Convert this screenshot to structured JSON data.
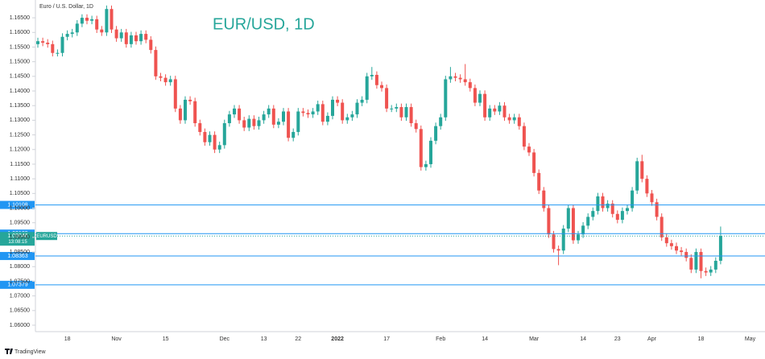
{
  "chart_data": {
    "type": "candlestick",
    "header": "Euro / U.S. Dollar, 1D",
    "title": "EUR/USD, 1D",
    "symbol": "EURUSD",
    "brand": "TradingView",
    "up_color": "#26a69a",
    "down_color": "#ef5350",
    "level_color": "#2196f3",
    "ylim": [
      1.0578,
      1.1697
    ],
    "yticks": [
      {
        "value": 1.06,
        "label": "1.06000"
      },
      {
        "value": 1.065,
        "label": "1.06500"
      },
      {
        "value": 1.07,
        "label": "1.07000"
      },
      {
        "value": 1.075,
        "label": "1.07500"
      },
      {
        "value": 1.08,
        "label": "1.08000"
      },
      {
        "value": 1.085,
        "label": "1.08500"
      },
      {
        "value": 1.09,
        "label": "1.09000"
      },
      {
        "value": 1.095,
        "label": "1.09500"
      },
      {
        "value": 1.1,
        "label": "1.10000"
      },
      {
        "value": 1.105,
        "label": "1.10500"
      },
      {
        "value": 1.11,
        "label": "1.11000"
      },
      {
        "value": 1.115,
        "label": "1.11500"
      },
      {
        "value": 1.12,
        "label": "1.12000"
      },
      {
        "value": 1.125,
        "label": "1.12500"
      },
      {
        "value": 1.13,
        "label": "1.13000"
      },
      {
        "value": 1.135,
        "label": "1.13500"
      },
      {
        "value": 1.14,
        "label": "1.14000"
      },
      {
        "value": 1.145,
        "label": "1.14500"
      },
      {
        "value": 1.15,
        "label": "1.15000"
      },
      {
        "value": 1.155,
        "label": "1.15500"
      },
      {
        "value": 1.16,
        "label": "1.16000"
      },
      {
        "value": 1.165,
        "label": "1.16500"
      }
    ],
    "levels": [
      1.10108,
      1.09129,
      1.08363,
      1.07379
    ],
    "current_price": 1.09046,
    "countdown": "13:08:15",
    "categories": [
      null,
      null,
      null,
      null,
      null,
      null,
      "18",
      null,
      null,
      null,
      null,
      null,
      null,
      null,
      null,
      null,
      "Nov",
      null,
      null,
      null,
      null,
      null,
      null,
      null,
      null,
      null,
      "15",
      null,
      null,
      null,
      null,
      null,
      null,
      null,
      null,
      null,
      null,
      null,
      "Dec",
      null,
      null,
      null,
      null,
      null,
      null,
      null,
      "13",
      null,
      null,
      null,
      null,
      null,
      null,
      "22",
      null,
      null,
      null,
      null,
      null,
      null,
      null,
      "2022",
      null,
      null,
      null,
      null,
      null,
      null,
      null,
      null,
      null,
      "17",
      null,
      null,
      null,
      null,
      null,
      null,
      null,
      null,
      null,
      null,
      "Feb",
      null,
      null,
      null,
      null,
      null,
      null,
      null,
      null,
      "14",
      null,
      null,
      null,
      null,
      null,
      null,
      null,
      null,
      null,
      "Mar",
      null,
      null,
      null,
      null,
      null,
      null,
      null,
      null,
      null,
      "14",
      null,
      null,
      null,
      null,
      null,
      null,
      "23",
      null,
      null,
      null,
      null,
      null,
      null,
      "Apr",
      null,
      null,
      null,
      null,
      null,
      null,
      null,
      null,
      null,
      "18",
      null,
      null,
      null,
      null,
      null,
      null,
      null,
      null,
      null,
      "May"
    ],
    "ohlc": [
      [
        1.156,
        1.1582,
        1.1548,
        1.157
      ],
      [
        1.157,
        1.1582,
        1.1553,
        1.1565
      ],
      [
        1.1565,
        1.1577,
        1.1548,
        1.156
      ],
      [
        1.156,
        1.1572,
        1.1518,
        1.153
      ],
      [
        1.153,
        1.1542,
        1.1518,
        1.153
      ],
      [
        1.153,
        1.1597,
        1.1518,
        1.1585
      ],
      [
        1.1585,
        1.1607,
        1.1573,
        1.1595
      ],
      [
        1.1595,
        1.1612,
        1.1583,
        1.16
      ],
      [
        1.16,
        1.1642,
        1.1588,
        1.163
      ],
      [
        1.163,
        1.1662,
        1.1618,
        1.165
      ],
      [
        1.165,
        1.1662,
        1.1628,
        1.164
      ],
      [
        1.164,
        1.1657,
        1.1628,
        1.1645
      ],
      [
        1.1645,
        1.1657,
        1.1598,
        1.161
      ],
      [
        1.161,
        1.1622,
        1.1588,
        1.16
      ],
      [
        1.16,
        1.1692,
        1.1588,
        1.168
      ],
      [
        1.168,
        1.1692,
        1.1598,
        1.161
      ],
      [
        1.161,
        1.1622,
        1.1568,
        1.158
      ],
      [
        1.158,
        1.1612,
        1.1568,
        1.16
      ],
      [
        1.16,
        1.1612,
        1.1548,
        1.156
      ],
      [
        1.156,
        1.1602,
        1.1548,
        1.159
      ],
      [
        1.159,
        1.1602,
        1.1558,
        1.157
      ],
      [
        1.157,
        1.1607,
        1.1558,
        1.1595
      ],
      [
        1.1595,
        1.1607,
        1.1563,
        1.1575
      ],
      [
        1.1575,
        1.1587,
        1.1528,
        1.154
      ],
      [
        1.154,
        1.1552,
        1.1438,
        1.145
      ],
      [
        1.145,
        1.1462,
        1.1433,
        1.1445
      ],
      [
        1.1445,
        1.1457,
        1.1418,
        1.143
      ],
      [
        1.143,
        1.1452,
        1.1418,
        1.144
      ],
      [
        1.144,
        1.1452,
        1.1328,
        1.134
      ],
      [
        1.134,
        1.1352,
        1.1288,
        1.13
      ],
      [
        1.13,
        1.1382,
        1.1288,
        1.137
      ],
      [
        1.137,
        1.1382,
        1.1353,
        1.1365
      ],
      [
        1.1365,
        1.1377,
        1.1278,
        1.129
      ],
      [
        1.129,
        1.1302,
        1.1248,
        1.126
      ],
      [
        1.126,
        1.1272,
        1.1213,
        1.1225
      ],
      [
        1.1225,
        1.1262,
        1.1213,
        1.125
      ],
      [
        1.125,
        1.1262,
        1.1188,
        1.12
      ],
      [
        1.12,
        1.1227,
        1.1188,
        1.1215
      ],
      [
        1.1215,
        1.1302,
        1.1203,
        1.129
      ],
      [
        1.129,
        1.1332,
        1.1278,
        1.132
      ],
      [
        1.132,
        1.1352,
        1.1308,
        1.134
      ],
      [
        1.134,
        1.1352,
        1.1288,
        1.13
      ],
      [
        1.13,
        1.1312,
        1.1263,
        1.1275
      ],
      [
        1.1275,
        1.1317,
        1.1263,
        1.1305
      ],
      [
        1.1305,
        1.1317,
        1.1268,
        1.128
      ],
      [
        1.128,
        1.1312,
        1.1268,
        1.13
      ],
      [
        1.13,
        1.1332,
        1.1288,
        1.132
      ],
      [
        1.132,
        1.1352,
        1.1308,
        1.134
      ],
      [
        1.134,
        1.1352,
        1.1273,
        1.1285
      ],
      [
        1.1285,
        1.1307,
        1.1273,
        1.1295
      ],
      [
        1.1295,
        1.1342,
        1.1283,
        1.133
      ],
      [
        1.133,
        1.1342,
        1.1228,
        1.124
      ],
      [
        1.124,
        1.1272,
        1.1228,
        1.126
      ],
      [
        1.126,
        1.1342,
        1.1248,
        1.133
      ],
      [
        1.133,
        1.1342,
        1.1313,
        1.1325
      ],
      [
        1.1325,
        1.1337,
        1.1308,
        1.132
      ],
      [
        1.132,
        1.1342,
        1.1308,
        1.133
      ],
      [
        1.133,
        1.1367,
        1.1318,
        1.1355
      ],
      [
        1.1355,
        1.1367,
        1.1283,
        1.1295
      ],
      [
        1.1295,
        1.1327,
        1.1283,
        1.1315
      ],
      [
        1.1315,
        1.1382,
        1.1303,
        1.137
      ],
      [
        1.137,
        1.1382,
        1.1348,
        1.136
      ],
      [
        1.136,
        1.1372,
        1.1288,
        1.13
      ],
      [
        1.13,
        1.1322,
        1.1288,
        1.131
      ],
      [
        1.131,
        1.1332,
        1.1298,
        1.132
      ],
      [
        1.132,
        1.1372,
        1.1308,
        1.136
      ],
      [
        1.136,
        1.1382,
        1.1348,
        1.137
      ],
      [
        1.137,
        1.1462,
        1.1358,
        1.145
      ],
      [
        1.145,
        1.1482,
        1.1438,
        1.1455
      ],
      [
        1.1455,
        1.1467,
        1.1408,
        1.142
      ],
      [
        1.142,
        1.1432,
        1.1398,
        1.141
      ],
      [
        1.141,
        1.1422,
        1.1328,
        1.134
      ],
      [
        1.134,
        1.1352,
        1.1328,
        1.134
      ],
      [
        1.134,
        1.1357,
        1.1328,
        1.1345
      ],
      [
        1.1345,
        1.1357,
        1.1298,
        1.131
      ],
      [
        1.131,
        1.1357,
        1.1298,
        1.1345
      ],
      [
        1.1345,
        1.1357,
        1.1278,
        1.129
      ],
      [
        1.129,
        1.1302,
        1.1258,
        1.127
      ],
      [
        1.127,
        1.1282,
        1.1128,
        1.114
      ],
      [
        1.114,
        1.1162,
        1.1128,
        1.115
      ],
      [
        1.115,
        1.1242,
        1.1138,
        1.123
      ],
      [
        1.123,
        1.1292,
        1.1218,
        1.128
      ],
      [
        1.128,
        1.1322,
        1.1268,
        1.131
      ],
      [
        1.131,
        1.1452,
        1.1298,
        1.144
      ],
      [
        1.144,
        1.1482,
        1.1428,
        1.145
      ],
      [
        1.145,
        1.1462,
        1.1433,
        1.1445
      ],
      [
        1.1445,
        1.1457,
        1.1428,
        1.144
      ],
      [
        1.144,
        1.1492,
        1.1418,
        1.143
      ],
      [
        1.143,
        1.1442,
        1.1398,
        1.141
      ],
      [
        1.141,
        1.1422,
        1.1348,
        1.136
      ],
      [
        1.136,
        1.1402,
        1.1348,
        1.139
      ],
      [
        1.139,
        1.1402,
        1.1298,
        1.131
      ],
      [
        1.131,
        1.1352,
        1.1298,
        1.134
      ],
      [
        1.134,
        1.1352,
        1.1318,
        1.133
      ],
      [
        1.133,
        1.1362,
        1.1318,
        1.135
      ],
      [
        1.135,
        1.1362,
        1.1298,
        1.131
      ],
      [
        1.131,
        1.1322,
        1.1288,
        1.13
      ],
      [
        1.13,
        1.1322,
        1.1288,
        1.131
      ],
      [
        1.131,
        1.1322,
        1.1268,
        1.128
      ],
      [
        1.128,
        1.1292,
        1.1198,
        1.121
      ],
      [
        1.121,
        1.1222,
        1.1178,
        1.119
      ],
      [
        1.119,
        1.1202,
        1.1108,
        1.112
      ],
      [
        1.112,
        1.1132,
        1.1048,
        1.106
      ],
      [
        1.106,
        1.1072,
        1.0988,
        1.1
      ],
      [
        1.1,
        1.1012,
        1.0898,
        1.091
      ],
      [
        1.091,
        1.0922,
        1.0848,
        1.086
      ],
      [
        1.086,
        1.0872,
        1.0805,
        1.0855
      ],
      [
        1.0855,
        1.0942,
        1.0843,
        1.093
      ],
      [
        1.093,
        1.1012,
        1.0918,
        1.1
      ],
      [
        1.1,
        1.1012,
        1.0878,
        1.089
      ],
      [
        1.089,
        1.0922,
        1.0878,
        1.091
      ],
      [
        1.091,
        1.0952,
        1.0898,
        1.094
      ],
      [
        1.094,
        1.0982,
        1.0928,
        1.097
      ],
      [
        1.097,
        1.1002,
        1.0958,
        1.099
      ],
      [
        1.099,
        1.1052,
        1.0978,
        1.104
      ],
      [
        1.104,
        1.1052,
        1.0988,
        1.1
      ],
      [
        1.1,
        1.1027,
        1.0988,
        1.1015
      ],
      [
        1.1015,
        1.1027,
        1.0968,
        1.098
      ],
      [
        1.098,
        1.0992,
        1.0948,
        1.096
      ],
      [
        1.096,
        1.1002,
        1.0948,
        1.099
      ],
      [
        1.099,
        1.1012,
        1.0978,
        1.1
      ],
      [
        1.1,
        1.1072,
        1.0988,
        1.106
      ],
      [
        1.106,
        1.1172,
        1.1048,
        1.116
      ],
      [
        1.116,
        1.1182,
        1.1088,
        1.11
      ],
      [
        1.11,
        1.1112,
        1.1038,
        1.105
      ],
      [
        1.105,
        1.1062,
        1.1008,
        1.102
      ],
      [
        1.102,
        1.1032,
        1.0958,
        1.097
      ],
      [
        1.097,
        1.0982,
        1.0888,
        1.09
      ],
      [
        1.09,
        1.0912,
        1.0868,
        1.088
      ],
      [
        1.088,
        1.0892,
        1.0858,
        1.087
      ],
      [
        1.087,
        1.0882,
        1.0843,
        1.0855
      ],
      [
        1.0855,
        1.0867,
        1.0838,
        1.085
      ],
      [
        1.085,
        1.0862,
        1.0818,
        1.083
      ],
      [
        1.083,
        1.0842,
        1.0778,
        1.079
      ],
      [
        1.079,
        1.0862,
        1.0778,
        1.085
      ],
      [
        1.085,
        1.0862,
        1.076,
        1.0785
      ],
      [
        1.0785,
        1.0797,
        1.0768,
        1.078
      ],
      [
        1.078,
        1.0802,
        1.0768,
        1.079
      ],
      [
        1.079,
        1.0832,
        1.0778,
        1.082
      ],
      [
        1.082,
        1.0937,
        1.0808,
        1.0905
      ],
      null,
      null,
      null,
      null,
      null,
      null
    ]
  }
}
